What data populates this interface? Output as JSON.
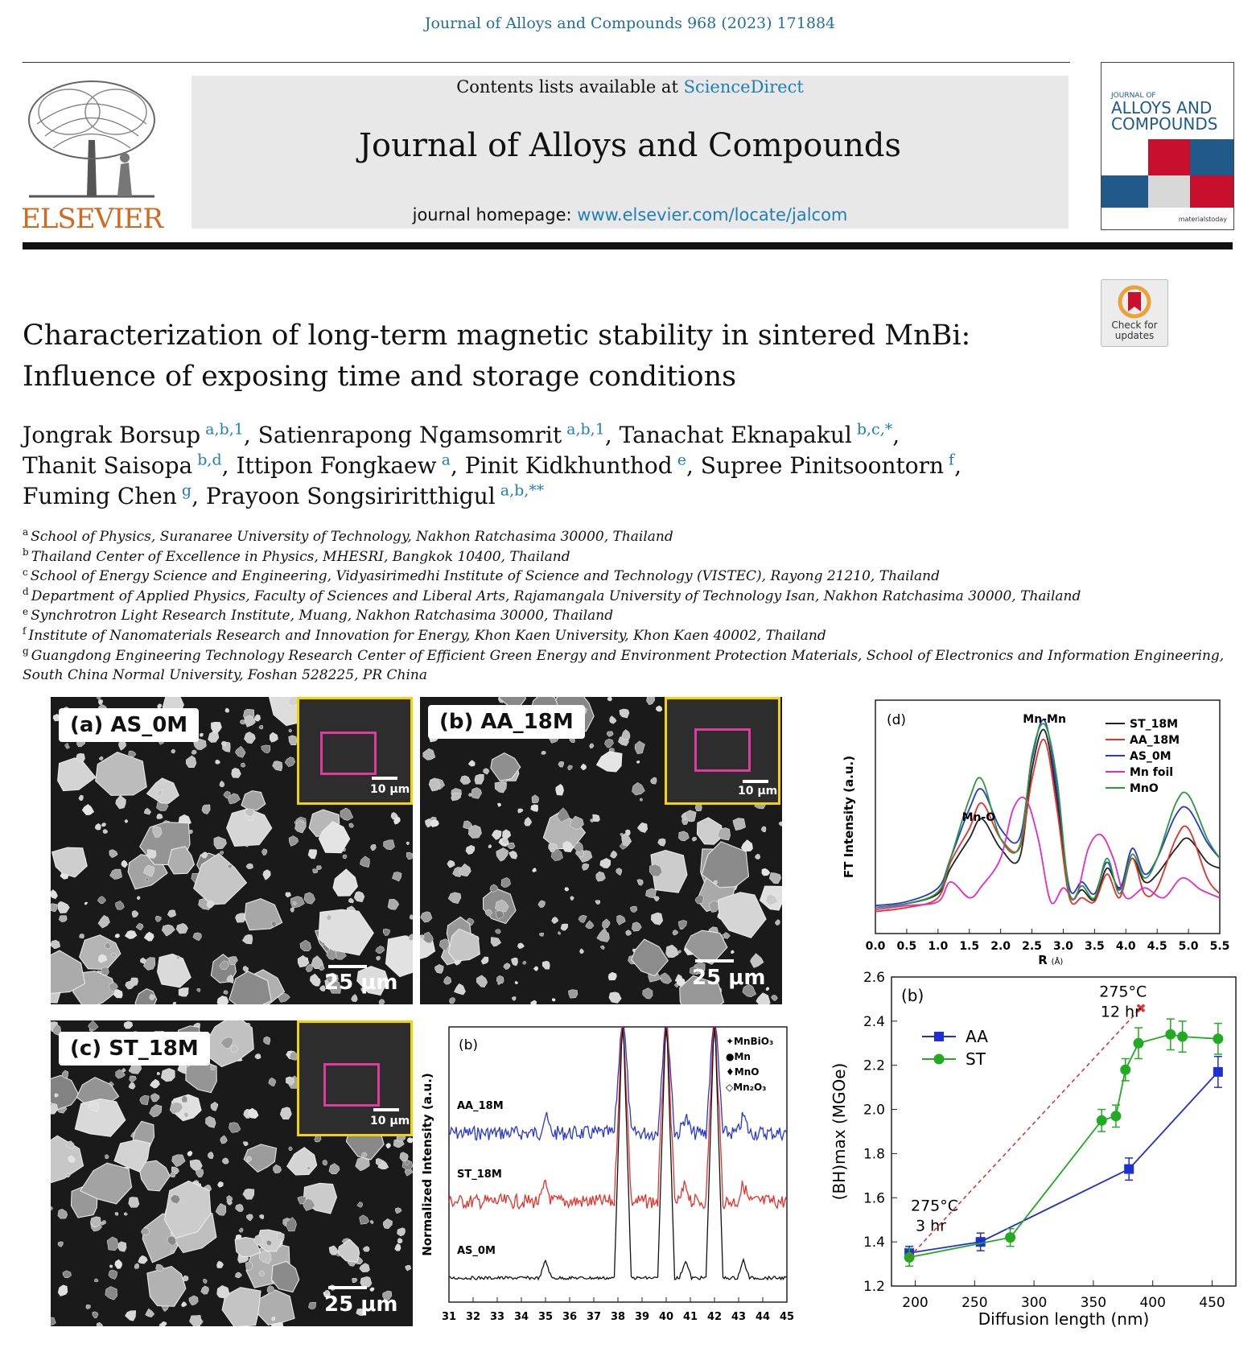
{
  "header": {
    "citation": "Journal of Alloys and Compounds 968 (2023) 171884",
    "contents_prefix": "Contents lists available at ",
    "contents_link": "ScienceDirect",
    "journal_title": "Journal of Alloys and Compounds",
    "homepage_prefix": "journal homepage: ",
    "homepage_link": "www.elsevier.com/locate/jalcom",
    "publisher": "ELSEVIER",
    "cover_small": "JOURNAL OF",
    "cover_line1": "ALLOYS AND",
    "cover_line2": "COMPOUNDS",
    "cover_footer": "materialstoday",
    "check_line1": "Check for",
    "check_line2": "updates",
    "colors": {
      "link": "#1f7fb3",
      "publisher": "#d2691e",
      "cover_red": "#c8102e",
      "cover_blue": "#1f5a8a"
    }
  },
  "article": {
    "title": "Characterization of long-term magnetic stability in sintered MnBi: Influence of exposing time and storage conditions",
    "authors": [
      {
        "name": "Jongrak Borsup",
        "sup": "a,b,1",
        "sep": ", "
      },
      {
        "name": "Satienrapong Ngamsomrit",
        "sup": "a,b,1",
        "sep": ", "
      },
      {
        "name": "Tanachat Eknapakul",
        "sup": "b,c,*",
        "sep": ","
      },
      {
        "name": "Thanit Saisopa",
        "sup": "b,d",
        "sep": ", "
      },
      {
        "name": "Ittipon Fongkaew",
        "sup": "a",
        "sep": ", "
      },
      {
        "name": "Pinit Kidkhunthod",
        "sup": "e",
        "sep": ", "
      },
      {
        "name": "Supree Pinitsoontorn",
        "sup": "f",
        "sep": ","
      },
      {
        "name": "Fuming Chen",
        "sup": "g",
        "sep": ", "
      },
      {
        "name": "Prayoon Songsiriritthigul",
        "sup": "a,b,**",
        "sep": ""
      }
    ],
    "affiliations": [
      {
        "letter": "a",
        "text": "School of Physics, Suranaree University of Technology, Nakhon Ratchasima 30000, Thailand"
      },
      {
        "letter": "b",
        "text": "Thailand Center of Excellence in Physics, MHESRI, Bangkok 10400, Thailand"
      },
      {
        "letter": "c",
        "text": "School of Energy Science and Engineering, Vidyasirimedhi Institute of Science and Technology (VISTEC), Rayong 21210, Thailand"
      },
      {
        "letter": "d",
        "text": "Department of Applied Physics, Faculty of Sciences and Liberal Arts, Rajamangala University of Technology Isan, Nakhon Ratchasima 30000, Thailand"
      },
      {
        "letter": "e",
        "text": "Synchrotron Light Research Institute, Muang, Nakhon Ratchasima 30000, Thailand"
      },
      {
        "letter": "f",
        "text": "Institute of Nanomaterials Research and Innovation for Energy, Khon Kaen University, Khon Kaen 40002, Thailand"
      },
      {
        "letter": "g",
        "text": "Guangdong Engineering Technology Research Center of Efficient Green Energy and Environment Protection Materials, School of Electronics and Information Engineering,"
      },
      {
        "letter": "",
        "text": "South China Normal University, Foshan 528225, PR China"
      }
    ]
  },
  "figures": {
    "sem": [
      {
        "label": "(a) AS_0M",
        "scale": "25 μm",
        "inset_scale": "10 μm"
      },
      {
        "label": "(b) AA_18M",
        "scale": "25 μm",
        "inset_scale": "10 μm"
      },
      {
        "label": "(c) ST_18M",
        "scale": "25 μm",
        "inset_scale": "10 μm"
      }
    ]
  },
  "chart_data": [
    {
      "type": "line",
      "panel": "(d)",
      "xlabel": "R",
      "xlabel_unit": "(Å)",
      "ylabel": "FT Intensity (a.u.)",
      "xlim": [
        0.0,
        5.5
      ],
      "xticks": [
        "0.0",
        "0.5",
        "1.0",
        "1.5",
        "2.0",
        "2.5",
        "3.0",
        "3.5",
        "4.0",
        "4.5",
        "5.0",
        "5.5"
      ],
      "annotations": [
        {
          "text": "Mn-Mn",
          "x": 2.7
        },
        {
          "text": "Mn-O",
          "x": 1.65
        }
      ],
      "legend_position": "top-right",
      "series": [
        {
          "name": "ST_18M",
          "color": "#222222",
          "x": [
            0.0,
            0.5,
            1.0,
            1.2,
            1.5,
            1.7,
            2.0,
            2.3,
            2.5,
            2.7,
            2.9,
            3.1,
            3.3,
            3.5,
            3.7,
            3.9,
            4.1,
            4.3,
            4.5,
            4.8,
            5.0,
            5.3,
            5.5
          ],
          "y": [
            0.05,
            0.07,
            0.12,
            0.25,
            0.4,
            0.5,
            0.35,
            0.3,
            0.75,
            0.95,
            0.6,
            0.12,
            0.14,
            0.09,
            0.25,
            0.15,
            0.3,
            0.18,
            0.22,
            0.35,
            0.4,
            0.28,
            0.25
          ]
        },
        {
          "name": "AA_18M",
          "color": "#e8302a",
          "x": [
            0.0,
            0.5,
            1.0,
            1.2,
            1.5,
            1.7,
            2.0,
            2.3,
            2.5,
            2.7,
            2.9,
            3.1,
            3.3,
            3.5,
            3.7,
            3.9,
            4.1,
            4.3,
            4.5,
            4.8,
            5.0,
            5.3,
            5.5
          ],
          "y": [
            0.03,
            0.05,
            0.1,
            0.28,
            0.45,
            0.58,
            0.4,
            0.35,
            0.7,
            0.9,
            0.55,
            0.1,
            0.1,
            0.08,
            0.22,
            0.1,
            0.3,
            0.12,
            0.15,
            0.4,
            0.45,
            0.2,
            0.12
          ]
        },
        {
          "name": "AS_0M",
          "color": "#2836d6",
          "x": [
            0.0,
            0.5,
            1.0,
            1.2,
            1.5,
            1.7,
            2.0,
            2.3,
            2.5,
            2.7,
            2.9,
            3.1,
            3.3,
            3.5,
            3.7,
            3.9,
            4.1,
            4.3,
            4.5,
            4.8,
            5.0,
            5.3,
            5.5
          ],
          "y": [
            0.06,
            0.08,
            0.15,
            0.3,
            0.55,
            0.65,
            0.45,
            0.4,
            0.8,
            1.0,
            0.65,
            0.15,
            0.18,
            0.12,
            0.28,
            0.14,
            0.35,
            0.22,
            0.3,
            0.52,
            0.55,
            0.38,
            0.3
          ]
        },
        {
          "name": "Mn foil",
          "color": "#e62ac8",
          "x": [
            0.0,
            0.5,
            1.0,
            1.2,
            1.5,
            1.7,
            2.0,
            2.2,
            2.4,
            2.6,
            2.8,
            3.0,
            3.2,
            3.4,
            3.6,
            3.8,
            4.0,
            4.3,
            4.6,
            4.9,
            5.2,
            5.5
          ],
          "y": [
            0.04,
            0.06,
            0.08,
            0.18,
            0.1,
            0.16,
            0.3,
            0.55,
            0.6,
            0.4,
            0.08,
            0.15,
            0.1,
            0.35,
            0.42,
            0.3,
            0.1,
            0.15,
            0.1,
            0.2,
            0.14,
            0.1
          ]
        },
        {
          "name": "MnO",
          "color": "#2a9a3a",
          "x": [
            0.0,
            0.5,
            1.0,
            1.2,
            1.5,
            1.7,
            2.0,
            2.3,
            2.5,
            2.7,
            2.9,
            3.1,
            3.3,
            3.5,
            3.7,
            3.9,
            4.1,
            4.3,
            4.5,
            4.8,
            5.0,
            5.3,
            5.5
          ],
          "y": [
            0.05,
            0.07,
            0.13,
            0.3,
            0.6,
            0.7,
            0.4,
            0.36,
            0.82,
            0.98,
            0.7,
            0.12,
            0.16,
            0.1,
            0.3,
            0.12,
            0.32,
            0.2,
            0.3,
            0.58,
            0.62,
            0.4,
            0.3
          ]
        }
      ]
    },
    {
      "type": "line",
      "panel": "(b)",
      "xlabel": "",
      "ylabel": "Normalized Intensity (a.u.)",
      "xlim": [
        31,
        45
      ],
      "xticks": [
        "31",
        "32",
        "33",
        "34",
        "35",
        "36",
        "37",
        "38",
        "39",
        "40",
        "41",
        "42",
        "43",
        "44",
        "45"
      ],
      "series_labels": [
        "AA_18M",
        "ST_18M",
        "AS_0M"
      ],
      "series_colors": [
        "#2836d6",
        "#e8302a",
        "#111111"
      ],
      "peaks": [
        38.2,
        40.0,
        42.0
      ],
      "legend": [
        "✦MnBiO₃",
        "●Mn",
        "♦MnO",
        "◇Mn₂O₃"
      ],
      "legend_position": "top-right"
    },
    {
      "type": "line",
      "panel": "(b)",
      "xlabel": "Diffusion length (nm)",
      "ylabel": "(BH)max (MGOe)",
      "xlim": [
        180,
        470
      ],
      "ylim": [
        1.2,
        2.6
      ],
      "xticks": [
        "200",
        "250",
        "300",
        "350",
        "400",
        "450"
      ],
      "yticks": [
        "1.2",
        "1.4",
        "1.6",
        "1.8",
        "2.0",
        "2.2",
        "2.4",
        "2.6"
      ],
      "legend_position": "top-left",
      "annotations": [
        {
          "text": "275°C",
          "text2": "3 hr"
        },
        {
          "text": "275°C",
          "text2": "12 hr"
        }
      ],
      "series": [
        {
          "name": "AA",
          "color": "#1f2fd6",
          "marker": "square",
          "x": [
            195,
            255,
            380,
            455
          ],
          "y": [
            1.35,
            1.4,
            1.73,
            2.17
          ],
          "err": [
            0.03,
            0.04,
            0.05,
            0.07
          ]
        },
        {
          "name": "ST",
          "color": "#22aa22",
          "marker": "circle",
          "x": [
            195,
            280,
            357,
            369,
            377,
            388,
            415,
            425,
            455
          ],
          "y": [
            1.33,
            1.42,
            1.95,
            1.97,
            2.18,
            2.3,
            2.34,
            2.33,
            2.32
          ],
          "err": [
            0.04,
            0.04,
            0.05,
            0.05,
            0.05,
            0.07,
            0.07,
            0.07,
            0.07
          ]
        },
        {
          "name": "",
          "color": "#e83030",
          "dashed": true,
          "x": [
            195,
            390
          ],
          "y": [
            1.33,
            2.46
          ]
        }
      ]
    }
  ]
}
